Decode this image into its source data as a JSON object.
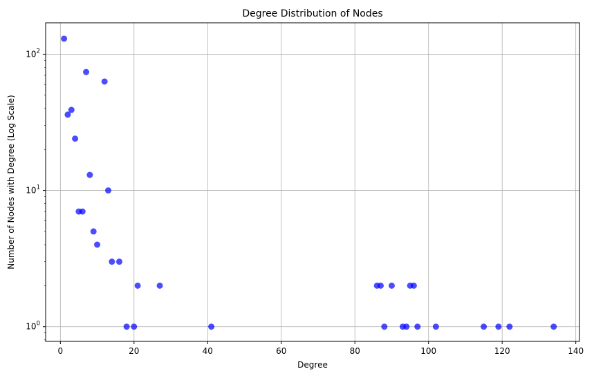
{
  "chart_data": {
    "type": "scatter",
    "title": "Degree Distribution of Nodes",
    "xlabel": "Degree",
    "ylabel": "Number of Nodes with Degree (Log Scale)",
    "xlim": [
      -4,
      141
    ],
    "ylim": [
      0.78,
      170
    ],
    "yscale": "log",
    "grid": true,
    "marker_color": "#0000ff",
    "marker_alpha": 0.7,
    "x_ticks": [
      0,
      20,
      40,
      60,
      80,
      100,
      120,
      140
    ],
    "x_tick_labels": [
      "0",
      "20",
      "40",
      "60",
      "80",
      "100",
      "120",
      "140"
    ],
    "y_ticks": [
      1,
      10,
      100
    ],
    "y_tick_labels": [
      {
        "base": "10",
        "exp": "0"
      },
      {
        "base": "10",
        "exp": "1"
      },
      {
        "base": "10",
        "exp": "2"
      }
    ],
    "points": [
      {
        "x": 1,
        "y": 130
      },
      {
        "x": 2,
        "y": 36
      },
      {
        "x": 3,
        "y": 39
      },
      {
        "x": 4,
        "y": 24
      },
      {
        "x": 5,
        "y": 7
      },
      {
        "x": 6,
        "y": 7
      },
      {
        "x": 7,
        "y": 74
      },
      {
        "x": 8,
        "y": 13
      },
      {
        "x": 9,
        "y": 5
      },
      {
        "x": 10,
        "y": 4
      },
      {
        "x": 12,
        "y": 63
      },
      {
        "x": 13,
        "y": 10
      },
      {
        "x": 14,
        "y": 3
      },
      {
        "x": 16,
        "y": 3
      },
      {
        "x": 18,
        "y": 1
      },
      {
        "x": 20,
        "y": 1
      },
      {
        "x": 21,
        "y": 2
      },
      {
        "x": 27,
        "y": 2
      },
      {
        "x": 41,
        "y": 1
      },
      {
        "x": 86,
        "y": 2
      },
      {
        "x": 87,
        "y": 2
      },
      {
        "x": 88,
        "y": 1
      },
      {
        "x": 90,
        "y": 2
      },
      {
        "x": 93,
        "y": 1
      },
      {
        "x": 94,
        "y": 1
      },
      {
        "x": 95,
        "y": 2
      },
      {
        "x": 96,
        "y": 2
      },
      {
        "x": 97,
        "y": 1
      },
      {
        "x": 102,
        "y": 1
      },
      {
        "x": 115,
        "y": 1
      },
      {
        "x": 119,
        "y": 1
      },
      {
        "x": 122,
        "y": 1
      },
      {
        "x": 134,
        "y": 1
      }
    ]
  }
}
